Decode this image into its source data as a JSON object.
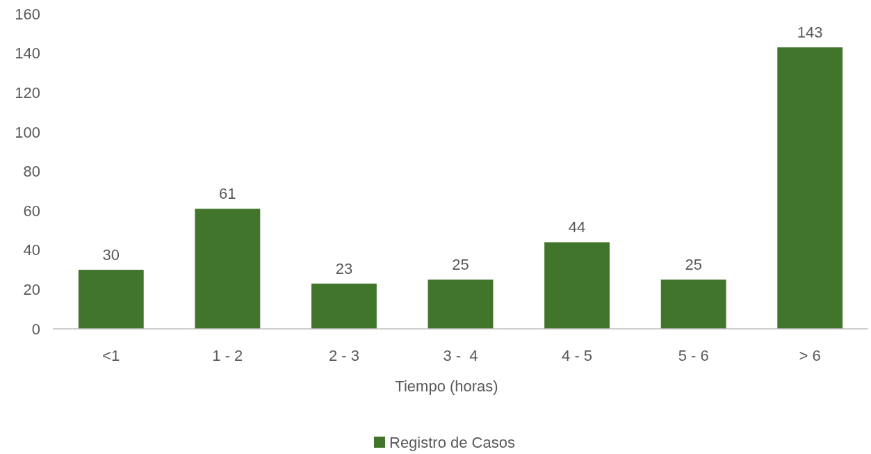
{
  "chart_data": {
    "type": "bar",
    "xlabel": "Tiempo (horas)",
    "categories": [
      "<1",
      "1 - 2",
      "2 - 3",
      "3 -  4",
      "4 - 5",
      "5 - 6",
      "> 6"
    ],
    "series": [
      {
        "name": "Registro de Casos",
        "color": "#41752b",
        "values": [
          30,
          61,
          23,
          25,
          44,
          25,
          143
        ]
      }
    ],
    "ylim": [
      0,
      160
    ],
    "yticks": [
      0,
      20,
      40,
      60,
      80,
      100,
      120,
      140,
      160
    ],
    "grid": false,
    "legend": "bottom",
    "data_labels": true
  }
}
